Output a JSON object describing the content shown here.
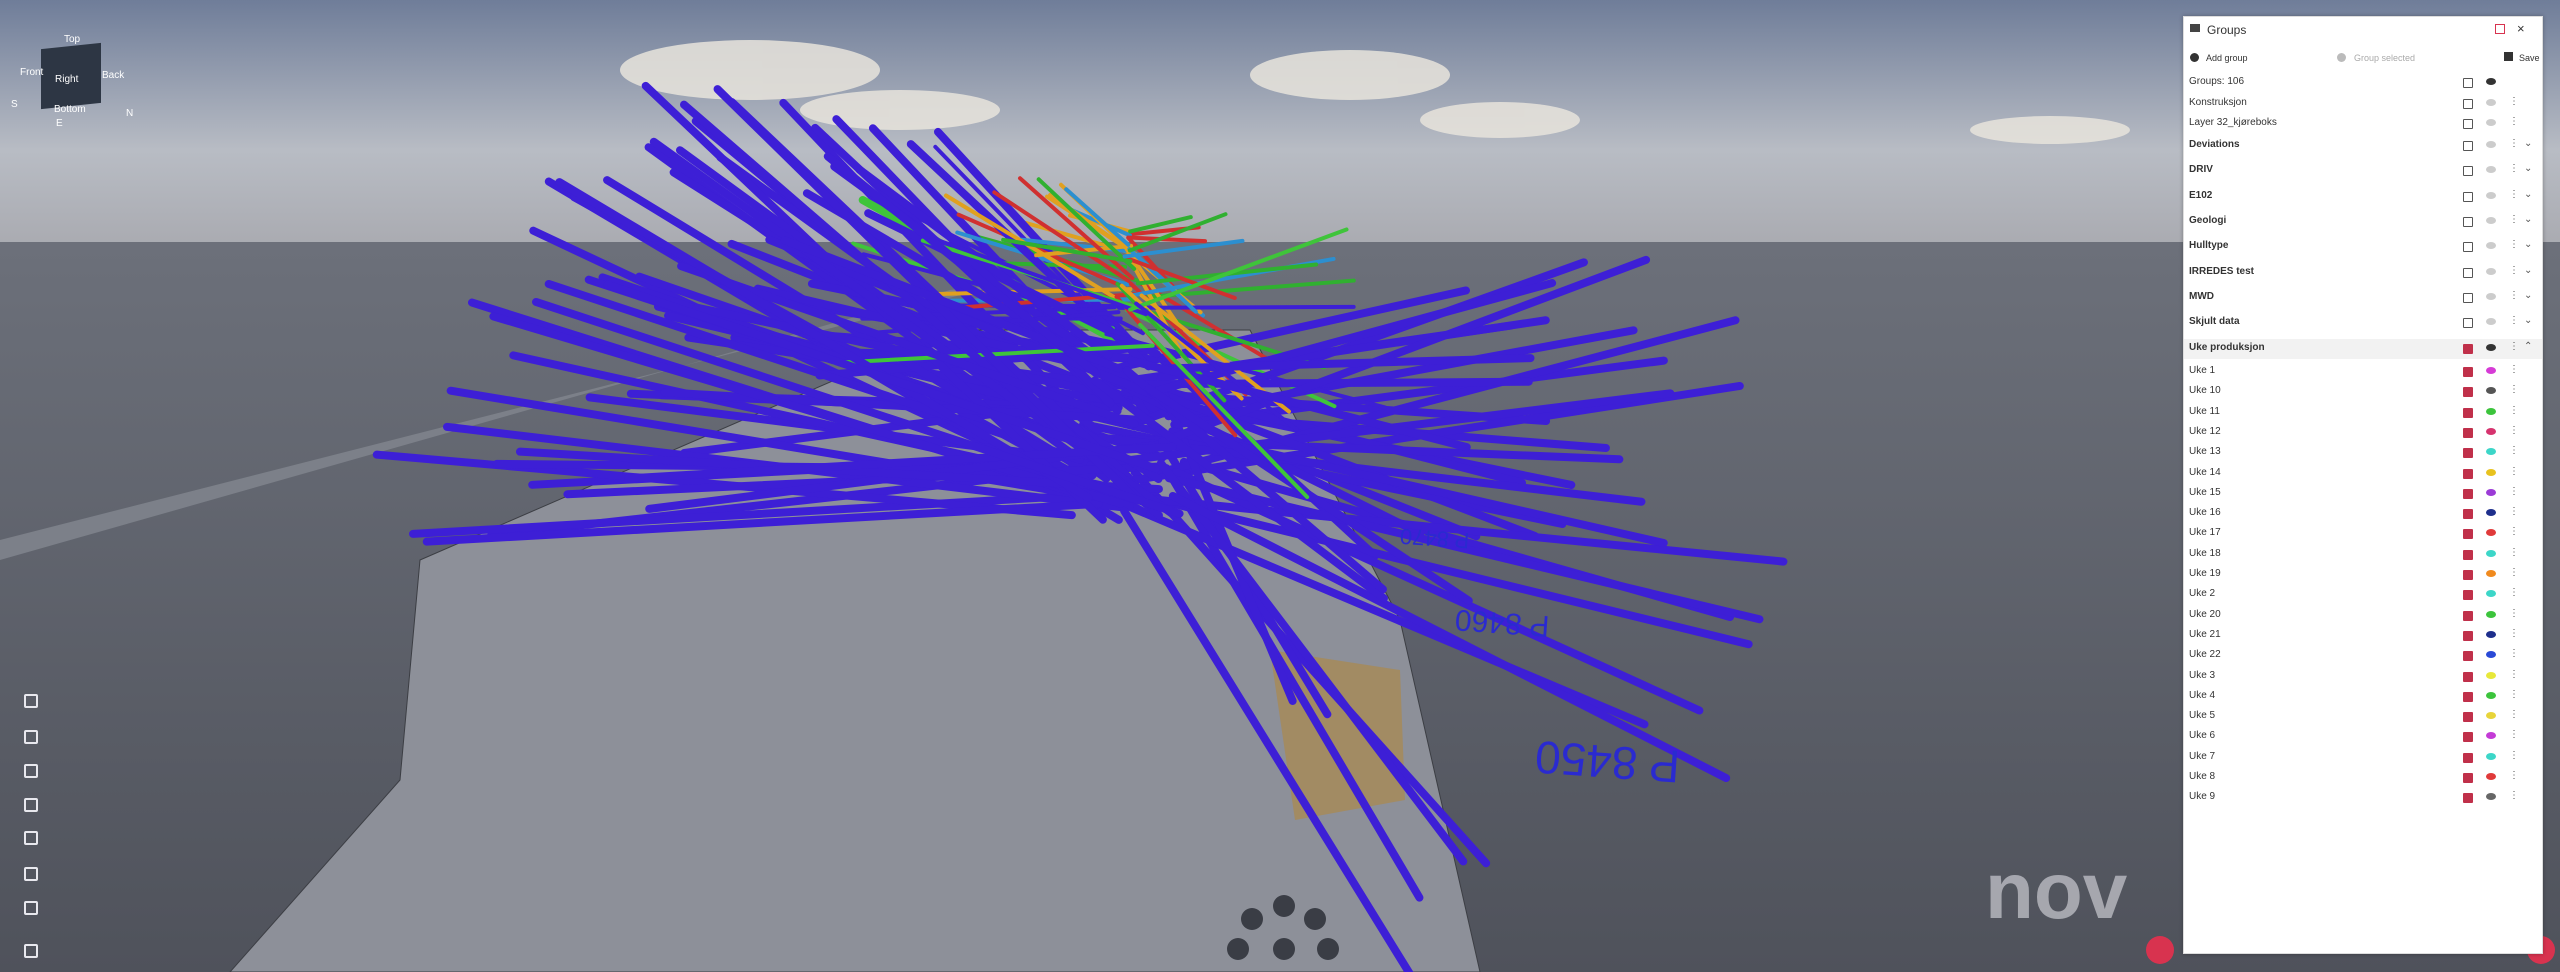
{
  "nav_cube": {
    "top": "Top",
    "front": "Front",
    "right": "Right",
    "back": "Back",
    "bottom": "Bottom",
    "south": "S",
    "east": "E",
    "north": "N"
  },
  "scene_labels": [
    "P 8450",
    "P 8460",
    "P 8470"
  ],
  "watermark": "nov",
  "panel": {
    "title": "Groups",
    "add_group": "Add group",
    "group_selected": "Group selected",
    "save": "Save",
    "layers": [
      "Groups: 106",
      "Konstruksjon",
      "Layer 32_kjøreboks"
    ],
    "groups": [
      "Deviations",
      "DRIV",
      "E102",
      "Geologi",
      "Hulltype",
      "IRREDES test",
      "MWD",
      "Skjult data"
    ],
    "open_group": {
      "label": "Uke produksjon",
      "children": [
        {
          "label": "Uke 1",
          "color": "#d63bd6"
        },
        {
          "label": "Uke 10",
          "color": "#555555"
        },
        {
          "label": "Uke 11",
          "color": "#3cc43c"
        },
        {
          "label": "Uke 12",
          "color": "#d6336e"
        },
        {
          "label": "Uke 13",
          "color": "#3cd6c8"
        },
        {
          "label": "Uke 14",
          "color": "#e8c21e"
        },
        {
          "label": "Uke 15",
          "color": "#9b3bd6"
        },
        {
          "label": "Uke 16",
          "color": "#1e2f8c"
        },
        {
          "label": "Uke 17",
          "color": "#e03a3a"
        },
        {
          "label": "Uke 18",
          "color": "#3cd6c8"
        },
        {
          "label": "Uke 19",
          "color": "#f08a1e"
        },
        {
          "label": "Uke 2",
          "color": "#3cd6c8"
        },
        {
          "label": "Uke 20",
          "color": "#3cc43c"
        },
        {
          "label": "Uke 21",
          "color": "#1e2f8c"
        },
        {
          "label": "Uke 22",
          "color": "#2a4ad6"
        },
        {
          "label": "Uke 3",
          "color": "#e8e83a"
        },
        {
          "label": "Uke 4",
          "color": "#3cc43c"
        },
        {
          "label": "Uke 5",
          "color": "#e8d43a"
        },
        {
          "label": "Uke 6",
          "color": "#c43bd6"
        },
        {
          "label": "Uke 7",
          "color": "#3cd6c8"
        },
        {
          "label": "Uke 8",
          "color": "#e03a3a"
        },
        {
          "label": "Uke 9",
          "color": "#666666"
        }
      ]
    }
  }
}
